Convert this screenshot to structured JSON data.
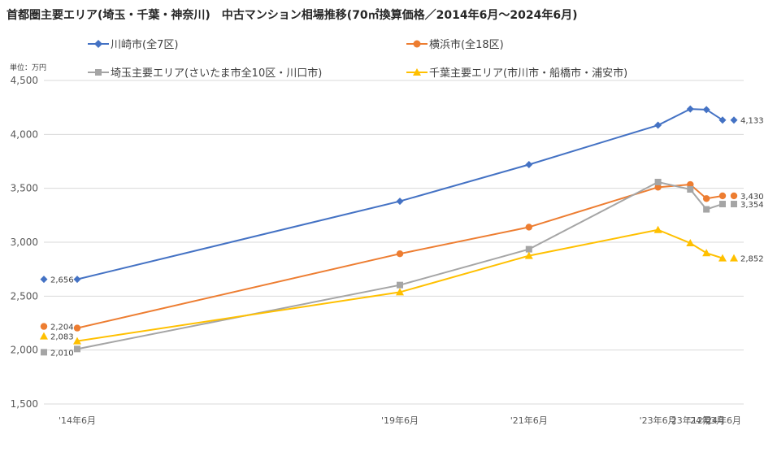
{
  "title": "首都圏主要エリア(埼玉・千葉・神奈川)　中古マンション相場推移(70㎡換算価格／2014年6月～2024年6月)",
  "unit_label": "単位：万円",
  "chart_data": {
    "type": "line",
    "title": "首都圏主要エリア(埼玉・千葉・神奈川)　中古マンション相場推移(70㎡換算価格／2014年6月～2024年6月)",
    "xlabel": "",
    "ylabel": "単位：万円",
    "ylim": [
      1500,
      4500
    ],
    "yticks": [
      1500,
      2000,
      2500,
      3000,
      3500,
      4000,
      4500
    ],
    "ytick_labels": [
      "1,500",
      "2,000",
      "2,500",
      "3,000",
      "3,500",
      "4,000",
      "4,500"
    ],
    "categories": [
      "'14年6月",
      "'19年6月",
      "'21年6月",
      "'23年6月",
      "'23年12月",
      "'24年3月",
      "'24年6月"
    ],
    "x_months": [
      0,
      60,
      84,
      108,
      114,
      117,
      120
    ],
    "grid": true,
    "legend_placement": "top",
    "series": [
      {
        "name": "川崎市(全7区)",
        "color": "#4472C4",
        "marker": "diamond",
        "values": [
          2656,
          3380,
          3720,
          4085,
          4235,
          4230,
          4133
        ],
        "start_label": "2,656",
        "end_label": "4,133"
      },
      {
        "name": "横浜市(全18区)",
        "color": "#ED7D31",
        "marker": "circle",
        "values": [
          2204,
          2893,
          3140,
          3510,
          3535,
          3405,
          3430
        ],
        "start_label": "2,204",
        "end_label": "3,430"
      },
      {
        "name": "埼玉主要エリア(さいたま市全10区・川口市)",
        "color": "#A5A5A5",
        "marker": "square",
        "values": [
          2010,
          2603,
          2935,
          3558,
          3490,
          3305,
          3354
        ],
        "start_label": "2,010",
        "end_label": "3,354"
      },
      {
        "name": "千葉主要エリア(市川市・船橋市・浦安市)",
        "color": "#FFC000",
        "marker": "triangle",
        "values": [
          2083,
          2537,
          2875,
          3115,
          2992,
          2900,
          2852
        ],
        "start_label": "2,083",
        "end_label": "2,852"
      }
    ]
  }
}
